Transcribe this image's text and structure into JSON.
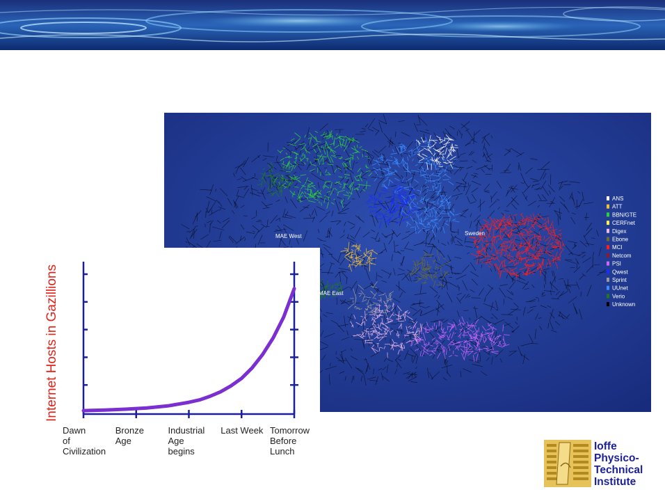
{
  "map": {
    "labels": [
      "MAE West",
      "Sweden",
      "MAE East"
    ],
    "legend": [
      {
        "name": "ANS",
        "color": "#ffffff"
      },
      {
        "name": "ATT",
        "color": "#f2c037"
      },
      {
        "name": "BBN/GTE",
        "color": "#2fd13a"
      },
      {
        "name": "CERFnet",
        "color": "#f7f34a"
      },
      {
        "name": "Digex",
        "color": "#f0b8e8"
      },
      {
        "name": "Ebone",
        "color": "#6b6b33"
      },
      {
        "name": "MCI",
        "color": "#ff1d1d"
      },
      {
        "name": "Netcom",
        "color": "#8a1c2b"
      },
      {
        "name": "PSI",
        "color": "#cc66ff"
      },
      {
        "name": "Qwest",
        "color": "#1a2dff"
      },
      {
        "name": "Sprint",
        "color": "#9a9a9a"
      },
      {
        "name": "UUnet",
        "color": "#3b8dff"
      },
      {
        "name": "Verio",
        "color": "#1f7a1f"
      },
      {
        "name": "Unknown",
        "color": "#000000"
      }
    ]
  },
  "chart_data": {
    "type": "line",
    "ylabel": "Internet Hosts in Gazillions",
    "xlabel": "",
    "x_tick_labels": [
      [
        "Dawn",
        "of",
        "Civilization"
      ],
      [
        "Bronze",
        "Age"
      ],
      [
        "Industrial",
        "Age",
        "begins"
      ],
      [
        "Last Week"
      ],
      [
        "Tomorrow",
        "Before",
        "Lunch"
      ]
    ],
    "xlim": [
      0,
      1
    ],
    "ylim": [
      0,
      5
    ],
    "series": [
      {
        "color": "#7b2fd1",
        "x": [
          0,
          0.1,
          0.2,
          0.3,
          0.4,
          0.5,
          0.55,
          0.6,
          0.65,
          0.7,
          0.75,
          0.8,
          0.85,
          0.9,
          0.95,
          1.0
        ],
        "y": [
          0.02,
          0.04,
          0.07,
          0.11,
          0.18,
          0.3,
          0.38,
          0.5,
          0.65,
          0.85,
          1.1,
          1.45,
          1.9,
          2.45,
          3.15,
          4.1
        ]
      }
    ]
  },
  "logo": {
    "lines": [
      "Ioffe",
      "Physico-",
      "Technical",
      "Institute"
    ]
  }
}
